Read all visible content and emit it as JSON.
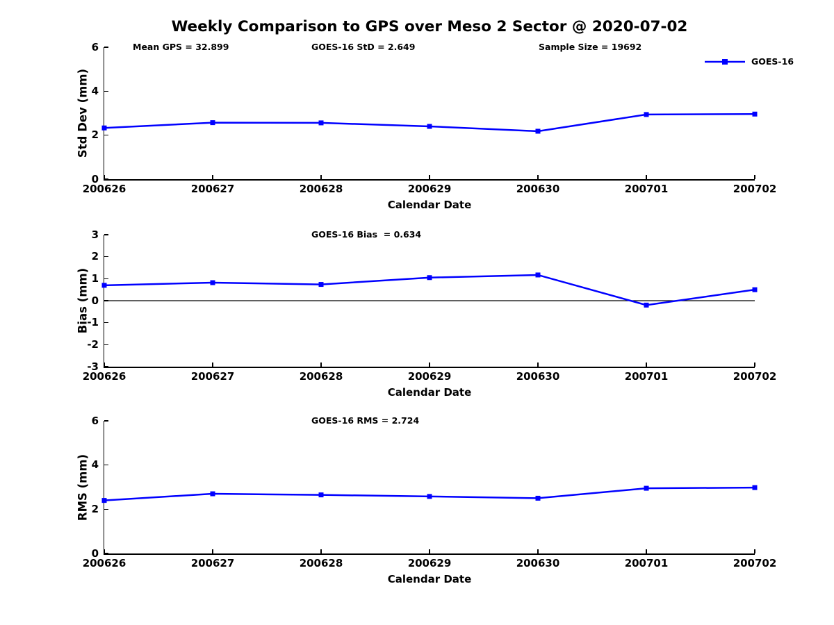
{
  "figure": {
    "title": "Weekly Comparison to GPS over Meso 2 Sector @ 2020-07-02",
    "background_color": "#ffffff",
    "accent_color": "#0000ff",
    "legend": {
      "label": "GOES-16",
      "marker": "square",
      "position": "top-right"
    }
  },
  "chart_data": [
    {
      "id": "std-dev",
      "type": "line",
      "title": "",
      "ylabel": "Std Dev (mm)",
      "xlabel": "Calendar Date",
      "categories": [
        "200626",
        "200627",
        "200628",
        "200629",
        "200630",
        "200701",
        "200702"
      ],
      "series": [
        {
          "name": "GOES-16",
          "color": "#0000ff",
          "marker": "square",
          "values": [
            2.33,
            2.57,
            2.56,
            2.4,
            2.18,
            2.94,
            2.96
          ]
        }
      ],
      "ylim": [
        0,
        6
      ],
      "yticks": [
        0,
        2,
        4,
        6
      ],
      "grid": false,
      "zero_line": false,
      "annotations": [
        "Mean GPS = 32.899",
        "GOES-16 StD = 2.649",
        "Sample Size = 19692"
      ]
    },
    {
      "id": "bias",
      "type": "line",
      "title": "",
      "ylabel": "Bias (mm)",
      "xlabel": "Calendar Date",
      "categories": [
        "200626",
        "200627",
        "200628",
        "200629",
        "200630",
        "200701",
        "200702"
      ],
      "series": [
        {
          "name": "GOES-16",
          "color": "#0000ff",
          "marker": "square",
          "values": [
            0.7,
            0.82,
            0.74,
            1.05,
            1.17,
            -0.2,
            0.5
          ]
        }
      ],
      "ylim": [
        -3,
        3
      ],
      "yticks": [
        3,
        2,
        1,
        0,
        -1,
        -2,
        -3
      ],
      "grid": false,
      "zero_line": true,
      "annotations": [
        "GOES-16 Bias  = 0.634"
      ]
    },
    {
      "id": "rms",
      "type": "line",
      "title": "",
      "ylabel": "RMS (mm)",
      "xlabel": "Calendar Date",
      "categories": [
        "200626",
        "200627",
        "200628",
        "200629",
        "200630",
        "200701",
        "200702"
      ],
      "series": [
        {
          "name": "GOES-16",
          "color": "#0000ff",
          "marker": "square",
          "values": [
            2.4,
            2.7,
            2.65,
            2.58,
            2.5,
            2.95,
            2.98
          ]
        }
      ],
      "ylim": [
        0,
        6
      ],
      "yticks": [
        0,
        2,
        4,
        6
      ],
      "grid": false,
      "zero_line": false,
      "annotations": [
        "GOES-16 RMS = 2.724"
      ]
    }
  ]
}
